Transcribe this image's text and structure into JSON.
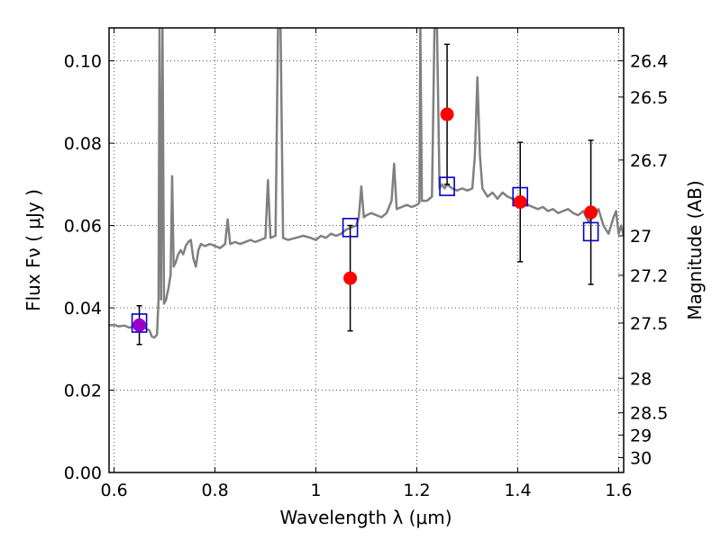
{
  "chart_data": {
    "type": "scatter",
    "xlabel": "Wavelength  λ (μm)",
    "ylabel": "Flux  Fν  ( μJy )",
    "ylabel_right": "Magnitude (AB)",
    "xlim": [
      0.59,
      1.61
    ],
    "ylim": [
      0.0,
      0.108
    ],
    "grid": true,
    "x_ticks": [
      0.6,
      0.8,
      1.0,
      1.2,
      1.4,
      1.6
    ],
    "x_tick_labels": [
      "0.6",
      "0.8",
      "1",
      "1.2",
      "1.4",
      "1.6"
    ],
    "y_ticks": [
      0.0,
      0.02,
      0.04,
      0.06,
      0.08,
      0.1
    ],
    "y_tick_labels": [
      "0.00",
      "0.02",
      "0.04",
      "0.06",
      "0.08",
      "0.10"
    ],
    "mag_ticks": [
      {
        "label": "26.4",
        "flux": 0.1
      },
      {
        "label": "26.5",
        "flux": 0.0912
      },
      {
        "label": "26.7",
        "flux": 0.0759
      },
      {
        "label": "27",
        "flux": 0.0575
      },
      {
        "label": "27.2",
        "flux": 0.0479
      },
      {
        "label": "27.5",
        "flux": 0.0363
      },
      {
        "label": "28",
        "flux": 0.0229
      },
      {
        "label": "28.5",
        "flux": 0.0145
      },
      {
        "label": "29",
        "flux": 0.0091
      },
      {
        "label": "30",
        "flux": 0.0036
      }
    ],
    "colors": {
      "model": "#808080",
      "observed": "#ff0000",
      "highlight": "#9900cc",
      "synthetic_edge": "#0000cc",
      "errorbar": "#000000",
      "grid": "#555555"
    },
    "series": [
      {
        "name": "model_spectrum",
        "kind": "line",
        "points": [
          [
            0.59,
            0.0358
          ],
          [
            0.6,
            0.0358
          ],
          [
            0.61,
            0.0355
          ],
          [
            0.62,
            0.0357
          ],
          [
            0.63,
            0.0352
          ],
          [
            0.64,
            0.0355
          ],
          [
            0.65,
            0.0357
          ],
          [
            0.66,
            0.0352
          ],
          [
            0.67,
            0.0345
          ],
          [
            0.675,
            0.033
          ],
          [
            0.68,
            0.0328
          ],
          [
            0.685,
            0.0335
          ],
          [
            0.688,
            0.042
          ],
          [
            0.69,
            0.108
          ],
          [
            0.693,
            0.042
          ],
          [
            0.696,
            0.108
          ],
          [
            0.699,
            0.041
          ],
          [
            0.703,
            0.042
          ],
          [
            0.708,
            0.045
          ],
          [
            0.712,
            0.048
          ],
          [
            0.715,
            0.072
          ],
          [
            0.718,
            0.05
          ],
          [
            0.722,
            0.051
          ],
          [
            0.727,
            0.053
          ],
          [
            0.732,
            0.054
          ],
          [
            0.737,
            0.053
          ],
          [
            0.742,
            0.055
          ],
          [
            0.747,
            0.056
          ],
          [
            0.752,
            0.0565
          ],
          [
            0.757,
            0.052
          ],
          [
            0.762,
            0.05
          ],
          [
            0.767,
            0.054
          ],
          [
            0.772,
            0.0555
          ],
          [
            0.78,
            0.055
          ],
          [
            0.79,
            0.0555
          ],
          [
            0.8,
            0.055
          ],
          [
            0.81,
            0.0545
          ],
          [
            0.82,
            0.0555
          ],
          [
            0.825,
            0.0615
          ],
          [
            0.83,
            0.0555
          ],
          [
            0.84,
            0.056
          ],
          [
            0.85,
            0.0555
          ],
          [
            0.86,
            0.056
          ],
          [
            0.87,
            0.0565
          ],
          [
            0.88,
            0.056
          ],
          [
            0.89,
            0.0565
          ],
          [
            0.9,
            0.057
          ],
          [
            0.905,
            0.071
          ],
          [
            0.91,
            0.057
          ],
          [
            0.92,
            0.0575
          ],
          [
            0.925,
            0.108
          ],
          [
            0.93,
            0.108
          ],
          [
            0.935,
            0.057
          ],
          [
            0.945,
            0.0565
          ],
          [
            0.96,
            0.057
          ],
          [
            0.975,
            0.0575
          ],
          [
            0.99,
            0.057
          ],
          [
            1.0,
            0.0565
          ],
          [
            1.01,
            0.0575
          ],
          [
            1.02,
            0.057
          ],
          [
            1.03,
            0.058
          ],
          [
            1.04,
            0.0575
          ],
          [
            1.05,
            0.058
          ],
          [
            1.06,
            0.059
          ],
          [
            1.07,
            0.0595
          ],
          [
            1.08,
            0.06
          ],
          [
            1.085,
            0.062
          ],
          [
            1.09,
            0.0695
          ],
          [
            1.095,
            0.062
          ],
          [
            1.1,
            0.0625
          ],
          [
            1.11,
            0.063
          ],
          [
            1.12,
            0.0625
          ],
          [
            1.13,
            0.062
          ],
          [
            1.14,
            0.063
          ],
          [
            1.15,
            0.066
          ],
          [
            1.155,
            0.075
          ],
          [
            1.16,
            0.064
          ],
          [
            1.17,
            0.0645
          ],
          [
            1.18,
            0.065
          ],
          [
            1.19,
            0.0645
          ],
          [
            1.2,
            0.065
          ],
          [
            1.205,
            0.0655
          ],
          [
            1.207,
            0.108
          ],
          [
            1.21,
            0.066
          ],
          [
            1.22,
            0.066
          ],
          [
            1.23,
            0.067
          ],
          [
            1.235,
            0.108
          ],
          [
            1.24,
            0.108
          ],
          [
            1.245,
            0.069
          ],
          [
            1.25,
            0.07
          ],
          [
            1.255,
            0.069
          ],
          [
            1.26,
            0.07
          ],
          [
            1.27,
            0.069
          ],
          [
            1.28,
            0.0685
          ],
          [
            1.29,
            0.069
          ],
          [
            1.3,
            0.0685
          ],
          [
            1.31,
            0.069
          ],
          [
            1.315,
            0.077
          ],
          [
            1.32,
            0.096
          ],
          [
            1.325,
            0.077
          ],
          [
            1.33,
            0.069
          ],
          [
            1.34,
            0.067
          ],
          [
            1.35,
            0.068
          ],
          [
            1.36,
            0.0665
          ],
          [
            1.37,
            0.068
          ],
          [
            1.38,
            0.067
          ],
          [
            1.39,
            0.0665
          ],
          [
            1.4,
            0.066
          ],
          [
            1.41,
            0.0655
          ],
          [
            1.42,
            0.065
          ],
          [
            1.43,
            0.0645
          ],
          [
            1.44,
            0.064
          ],
          [
            1.45,
            0.0645
          ],
          [
            1.46,
            0.0635
          ],
          [
            1.47,
            0.064
          ],
          [
            1.48,
            0.063
          ],
          [
            1.49,
            0.0635
          ],
          [
            1.5,
            0.064
          ],
          [
            1.51,
            0.063
          ],
          [
            1.52,
            0.0625
          ],
          [
            1.53,
            0.0635
          ],
          [
            1.54,
            0.061
          ],
          [
            1.55,
            0.062
          ],
          [
            1.56,
            0.064
          ],
          [
            1.57,
            0.06
          ],
          [
            1.58,
            0.058
          ],
          [
            1.59,
            0.062
          ],
          [
            1.595,
            0.0635
          ],
          [
            1.6,
            0.058
          ],
          [
            1.605,
            0.06
          ],
          [
            1.61,
            0.0575
          ]
        ]
      },
      {
        "name": "observed_photometry",
        "kind": "errorbar",
        "points": [
          {
            "x": 0.65,
            "y": 0.0358,
            "yerr": 0.0047,
            "highlight": true
          },
          {
            "x": 1.068,
            "y": 0.0472,
            "yerr": 0.0128
          },
          {
            "x": 1.26,
            "y": 0.087,
            "yerr": 0.017
          },
          {
            "x": 1.405,
            "y": 0.0657,
            "yerr": 0.0145
          },
          {
            "x": 1.545,
            "y": 0.0632,
            "yerr": 0.0175
          }
        ]
      },
      {
        "name": "synthetic_photometry",
        "kind": "square",
        "points": [
          {
            "x": 0.65,
            "y": 0.0363
          },
          {
            "x": 1.068,
            "y": 0.0595
          },
          {
            "x": 1.26,
            "y": 0.0695
          },
          {
            "x": 1.405,
            "y": 0.067
          },
          {
            "x": 1.545,
            "y": 0.0585
          }
        ]
      }
    ]
  }
}
